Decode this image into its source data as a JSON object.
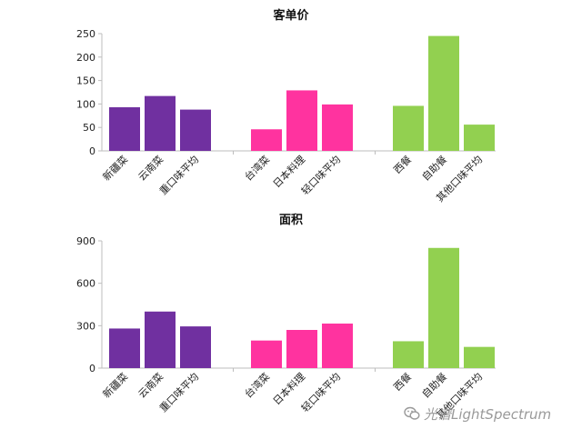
{
  "chart_data": [
    {
      "type": "bar",
      "title": "客单价",
      "categories": [
        "新疆菜",
        "云南菜",
        "重口味平均",
        "台湾菜",
        "日本料理",
        "轻口味平均",
        "西餐",
        "自助餐",
        "其他口味平均"
      ],
      "groups": [
        [
          0,
          1,
          2
        ],
        [
          3,
          4,
          5
        ],
        [
          6,
          7,
          8
        ]
      ],
      "values": [
        93,
        117,
        88,
        46,
        129,
        99,
        96,
        245,
        56
      ],
      "yticks": [
        0,
        50,
        100,
        150,
        200,
        250
      ],
      "ylim": [
        0,
        250
      ],
      "colors": [
        "#7030A0",
        "#7030A0",
        "#7030A0",
        "#FF339F",
        "#FF339F",
        "#FF339F",
        "#92D050",
        "#92D050",
        "#92D050"
      ],
      "grid": false
    },
    {
      "type": "bar",
      "title": "面积",
      "categories": [
        "新疆菜",
        "云南菜",
        "重口味平均",
        "台湾菜",
        "日本料理",
        "轻口味平均",
        "西餐",
        "自助餐",
        "其他口味平均"
      ],
      "groups": [
        [
          0,
          1,
          2
        ],
        [
          3,
          4,
          5
        ],
        [
          6,
          7,
          8
        ]
      ],
      "values": [
        280,
        400,
        295,
        195,
        270,
        315,
        190,
        850,
        150
      ],
      "yticks": [
        0,
        300,
        600,
        900
      ],
      "ylim": [
        0,
        900
      ],
      "colors": [
        "#7030A0",
        "#7030A0",
        "#7030A0",
        "#FF339F",
        "#FF339F",
        "#FF339F",
        "#92D050",
        "#92D050",
        "#92D050"
      ],
      "grid": false
    }
  ],
  "watermark": {
    "text": "光谱LightSpectrum",
    "icon": "wechat-icon"
  }
}
